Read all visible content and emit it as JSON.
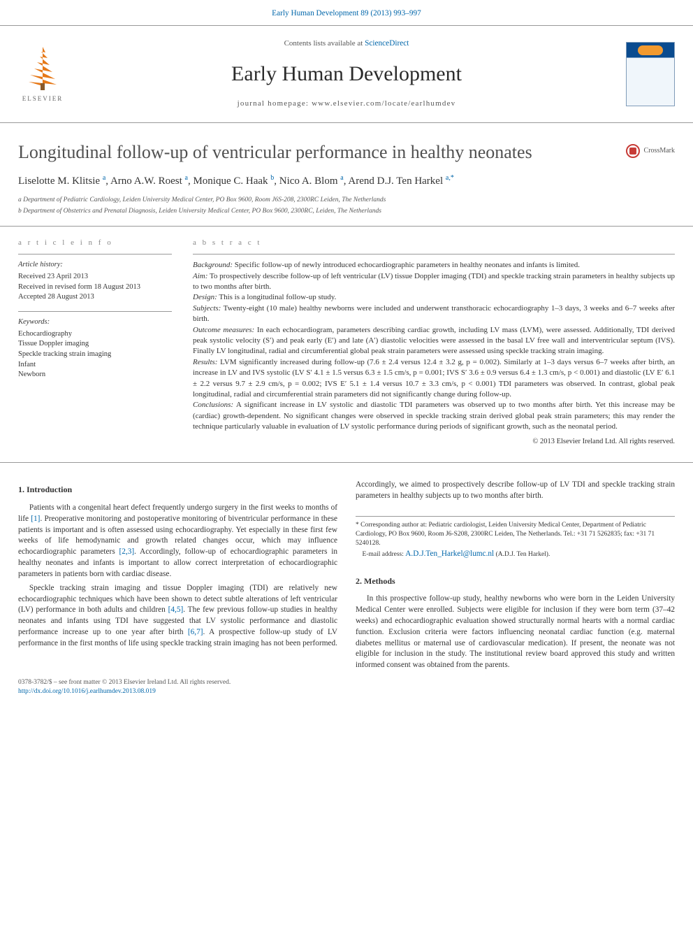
{
  "top_link": "Early Human Development 89 (2013) 993–997",
  "contents_prefix": "Contents lists available at ",
  "contents_link": "ScienceDirect",
  "journal_name": "Early Human Development",
  "journal_homepage": "journal homepage: www.elsevier.com/locate/earlhumdev",
  "elsevier_text": "ELSEVIER",
  "crossmark_label": "CrossMark",
  "title": "Longitudinal follow-up of ventricular performance in healthy neonates",
  "authors_html": "Liselotte M. Klitsie <sup>a</sup>, Arno A.W. Roest <sup>a</sup>, Monique C. Haak <sup>b</sup>, Nico A. Blom <sup>a</sup>, Arend D.J. Ten Harkel <sup>a,*</sup>",
  "affiliations": {
    "a": "a  Department of Pediatric Cardiology, Leiden University Medical Center, PO Box 9600, Room J6S-208, 2300RC Leiden, The Netherlands",
    "b": "b  Department of Obstetrics and Prenatal Diagnosis, Leiden University Medical Center, PO Box 9600, 2300RC, Leiden, The Netherlands"
  },
  "article_info_head": "a r t i c l e   i n f o",
  "abstract_head": "a b s t r a c t",
  "history_label": "Article history:",
  "history": {
    "received": "Received 23 April 2013",
    "revised": "Received in revised form 18 August 2013",
    "accepted": "Accepted 28 August 2013"
  },
  "keywords_label": "Keywords:",
  "keywords": [
    "Echocardiography",
    "Tissue Doppler imaging",
    "Speckle tracking strain imaging",
    "Infant",
    "Newborn"
  ],
  "abstract": {
    "background_l": "Background:",
    "background": " Specific follow-up of newly introduced echocardiographic parameters in healthy neonates and infants is limited.",
    "aim_l": "Aim:",
    "aim": " To prospectively describe follow-up of left ventricular (LV) tissue Doppler imaging (TDI) and speckle tracking strain parameters in healthy subjects up to two months after birth.",
    "design_l": "Design:",
    "design": " This is a longitudinal follow-up study.",
    "subjects_l": "Subjects:",
    "subjects": " Twenty-eight (10 male) healthy newborns were included and underwent transthoracic echocardiography 1–3 days, 3 weeks and 6–7 weeks after birth.",
    "outcome_l": "Outcome measures:",
    "outcome": " In each echocardiogram, parameters describing cardiac growth, including LV mass (LVM), were assessed. Additionally, TDI derived peak systolic velocity (S′) and peak early (E′) and late (A′) diastolic velocities were assessed in the basal LV free wall and interventricular septum (IVS). Finally LV longitudinal, radial and circumferential global peak strain parameters were assessed using speckle tracking strain imaging.",
    "results_l": "Results:",
    "results": " LVM significantly increased during follow-up (7.6 ± 2.4 versus 12.4 ± 3.2 g, p = 0.002). Similarly at 1–3 days versus 6–7 weeks after birth, an increase in LV and IVS systolic (LV S′ 4.1 ± 1.5 versus 6.3 ± 1.5 cm/s, p = 0.001; IVS S′ 3.6 ± 0.9 versus 6.4 ± 1.3 cm/s, p < 0.001) and diastolic (LV E′ 6.1 ± 2.2 versus 9.7 ± 2.9 cm/s, p = 0.002; IVS E′ 5.1 ± 1.4 versus 10.7 ± 3.3 cm/s, p < 0.001) TDI parameters was observed. In contrast, global peak longitudinal, radial and circumferential strain parameters did not significantly change during follow-up.",
    "conclusions_l": "Conclusions:",
    "conclusions": " A significant increase in LV systolic and diastolic TDI parameters was observed up to two months after birth. Yet this increase may be (cardiac) growth-dependent. No significant changes were observed in speckle tracking strain derived global peak strain parameters; this may render the technique particularly valuable in evaluation of LV systolic performance during periods of significant growth, such as the neonatal period.",
    "copyright": "© 2013 Elsevier Ireland Ltd. All rights reserved."
  },
  "body": {
    "intro_head": "1. Introduction",
    "intro_p1a": "Patients with a congenital heart defect frequently undergo surgery in the first weeks to months of life ",
    "intro_ref1": "[1]",
    "intro_p1b": ". Preoperative monitoring and postoperative monitoring of biventricular performance in these patients is important and is often assessed using echocardiography. Yet especially in these first few weeks of life hemodynamic and growth related changes occur, which may influence echocardiographic parameters ",
    "intro_ref23": "[2,3]",
    "intro_p1c": ". Accordingly, follow-up of echocardiographic parameters in healthy neonates and infants is important to allow correct interpretation of echocardiographic parameters in patients born with cardiac disease.",
    "intro_p2a": "Speckle tracking strain imaging and tissue Doppler imaging (TDI) are relatively new echocardiographic techniques which have been shown to detect subtle alterations of left ventricular (LV) performance in both adults and children ",
    "intro_ref45": "[4,5]",
    "intro_p2b": ". The few previous follow-up studies in healthy neonates and infants using TDI have suggested that LV systolic performance and diastolic performance increase up to one year after birth ",
    "intro_ref67": "[6,7]",
    "intro_p2c": ". A prospective follow-up study of LV performance in the first months of life using speckle tracking strain imaging has not been performed. Accordingly, we aimed to prospectively describe follow-up of LV TDI and speckle tracking strain parameters in healthy subjects up to two months after birth.",
    "methods_head": "2. Methods",
    "methods_p1": "In this prospective follow-up study, healthy newborns who were born in the Leiden University Medical Center were enrolled. Subjects were eligible for inclusion if they were born term (37–42 weeks) and echocardiographic evaluation showed structurally normal hearts with a normal cardiac function. Exclusion criteria were factors influencing neonatal cardiac function (e.g. maternal diabetes mellitus or maternal use of cardiovascular medication). If present, the neonate was not eligible for inclusion in the study. The institutional review board approved this study and written informed consent was obtained from the parents."
  },
  "corr": {
    "star": "* Corresponding author at: Pediatric cardiologist, Leiden University Medical Center, Department of Pediatric Cardiology, PO Box 9600, Room J6-S208, 2300RC Leiden, The Netherlands. Tel.: +31 71 5262835; fax: +31 71 5240128.",
    "email_label": "E-mail address: ",
    "email": "A.D.J.Ten_Harkel@lumc.nl",
    "email_tail": " (A.D.J. Ten Harkel)."
  },
  "footer": {
    "issn": "0378-3782/$ – see front matter © 2013 Elsevier Ireland Ltd. All rights reserved.",
    "doi": "http://dx.doi.org/10.1016/j.earlhumdev.2013.08.019"
  },
  "colors": {
    "link": "#0066aa",
    "rule": "#999999",
    "accent_orange": "#e67817",
    "crossmark_red": "#c73c37",
    "cover_blue": "#0a4b8f"
  }
}
